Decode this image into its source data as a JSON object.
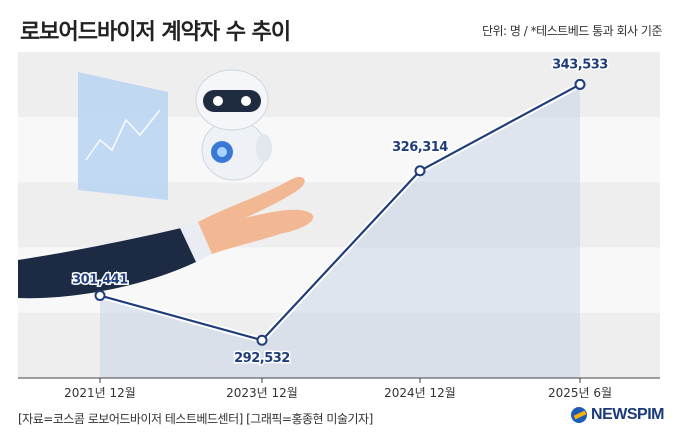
{
  "header": {
    "title": "로보어드바이저 계약자 수 추이",
    "unit": "단위: 명 / *테스트베드 통과 회사 기준"
  },
  "footer": {
    "source": "[자료=코스콤 로보어드바이저 테스트베드센터] [그래픽=홍종현 미술기자]",
    "logo": "NEWSPIM"
  },
  "chart_data": {
    "type": "line",
    "title": "로보어드바이저 계약자 수 추이",
    "categories": [
      "2021년 12월",
      "2023년 12월",
      "2024년 12월",
      "2025년 6월"
    ],
    "values": [
      301441,
      292532,
      326314,
      343533
    ],
    "labels": [
      "301,441",
      "292,532",
      "326,314",
      "343,533"
    ],
    "ylim": [
      285000,
      350000
    ],
    "grid": true,
    "line_color": "#1f3d7a"
  }
}
